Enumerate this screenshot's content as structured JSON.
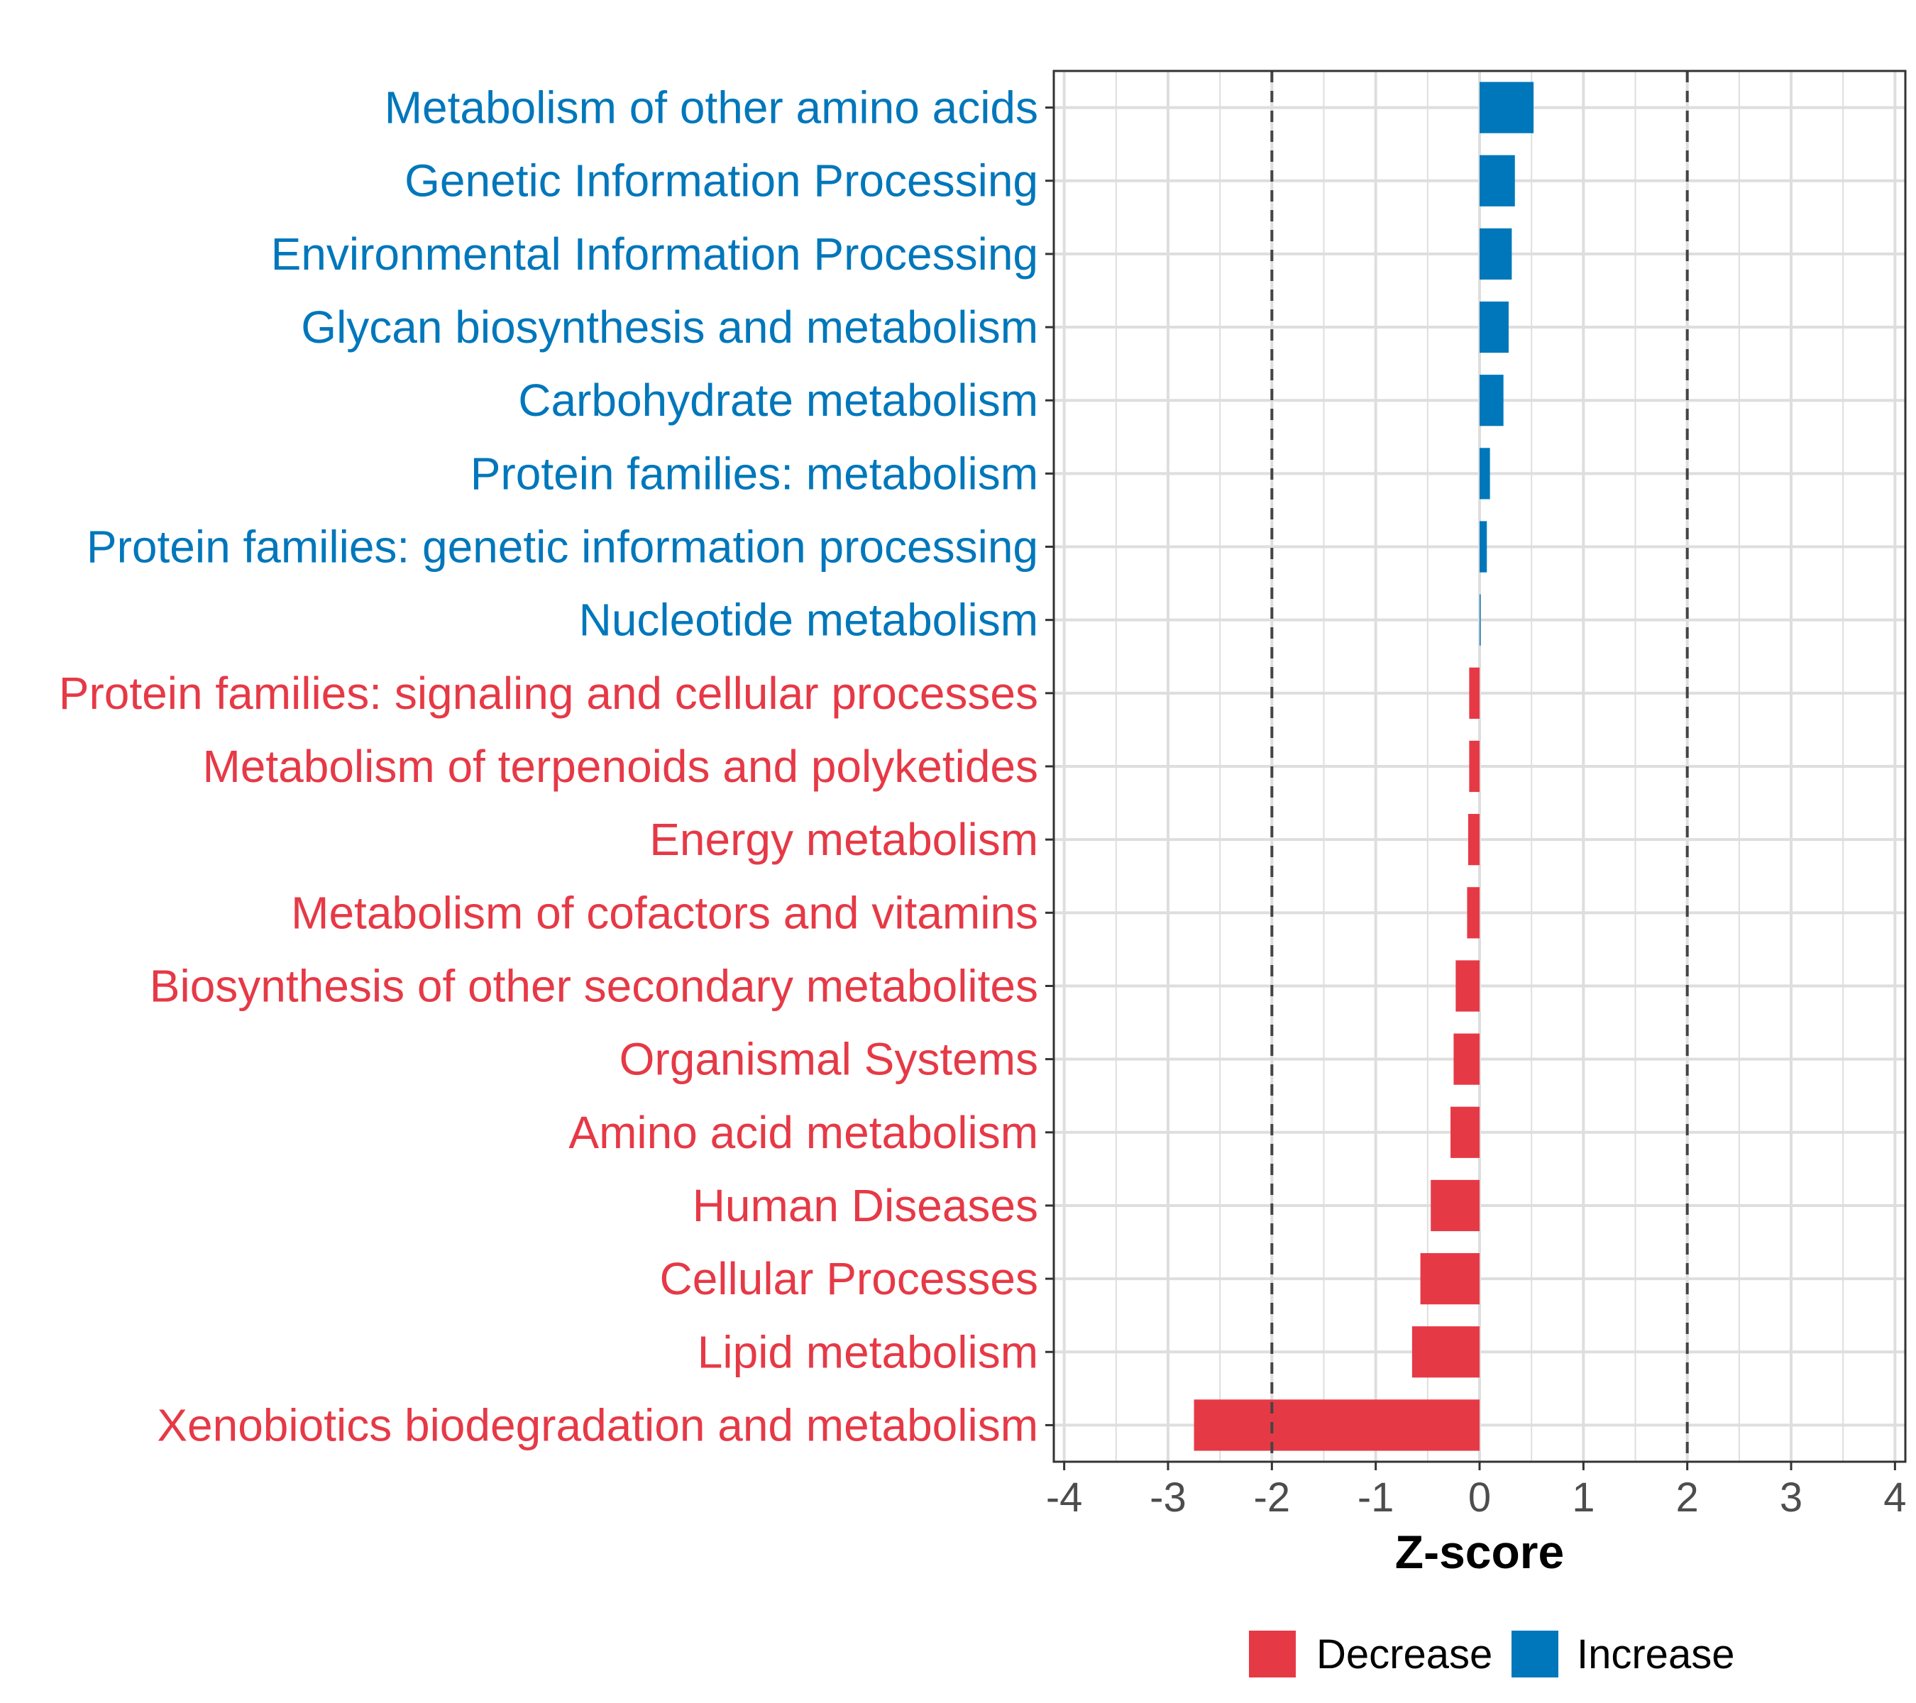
{
  "chart_data": {
    "type": "bar",
    "orientation": "horizontal",
    "xlabel": "Z-score",
    "xlim": [
      -4.1,
      4.1
    ],
    "xticks": [
      -4,
      -3,
      -2,
      -1,
      0,
      1,
      2,
      3,
      4
    ],
    "xtick_labels": [
      "-4",
      "-3",
      "-2",
      "-1",
      "0",
      "1",
      "2",
      "3",
      "4"
    ],
    "reference_lines": [
      -2,
      2
    ],
    "grid": true,
    "categories": [
      "Metabolism of other amino acids",
      "Genetic Information Processing",
      "Environmental Information Processing",
      "Glycan biosynthesis and metabolism",
      "Carbohydrate metabolism",
      "Protein families: metabolism",
      "Protein families: genetic information processing",
      "Nucleotide metabolism",
      "Protein families: signaling and cellular processes",
      "Metabolism of terpenoids and polyketides",
      "Energy metabolism",
      "Metabolism of cofactors and vitamins",
      "Biosynthesis of other secondary metabolites",
      "Organismal Systems",
      "Amino acid metabolism",
      "Human Diseases",
      "Cellular Processes",
      "Lipid metabolism",
      "Xenobiotics biodegradation and metabolism"
    ],
    "values": [
      0.52,
      0.34,
      0.31,
      0.28,
      0.23,
      0.1,
      0.07,
      0.01,
      -0.1,
      -0.1,
      -0.11,
      -0.12,
      -0.23,
      -0.25,
      -0.28,
      -0.47,
      -0.57,
      -0.65,
      -2.75
    ],
    "groups": [
      "Increase",
      "Increase",
      "Increase",
      "Increase",
      "Increase",
      "Increase",
      "Increase",
      "Increase",
      "Decrease",
      "Decrease",
      "Decrease",
      "Decrease",
      "Decrease",
      "Decrease",
      "Decrease",
      "Decrease",
      "Decrease",
      "Decrease",
      "Decrease"
    ],
    "legend": [
      {
        "name": "Decrease",
        "color": "#E63946"
      },
      {
        "name": "Increase",
        "color": "#0077BB"
      }
    ],
    "legend_position": "bottom"
  },
  "colors": {
    "decrease": "#E63946",
    "increase": "#0077BB",
    "grid": "#dedede",
    "axis": "#333333"
  }
}
